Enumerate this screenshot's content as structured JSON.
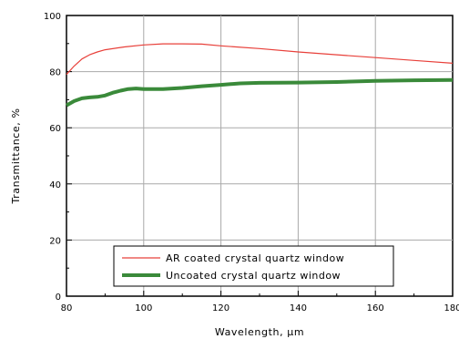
{
  "chart_data": {
    "type": "line",
    "xlabel": "Wavelength, µm",
    "ylabel": "Transmittance, %",
    "xlim": [
      80,
      180
    ],
    "ylim": [
      0,
      100
    ],
    "xticks": [
      80,
      100,
      120,
      140,
      160,
      180
    ],
    "yticks": [
      0,
      20,
      40,
      60,
      80,
      100
    ],
    "grid": true,
    "legend_position": "bottom-center",
    "series": [
      {
        "name": "AR coated crystal quartz window",
        "color": "#e8403a",
        "x": [
          80,
          82,
          84,
          86,
          88,
          90,
          95,
          100,
          105,
          110,
          115,
          120,
          130,
          140,
          150,
          160,
          170,
          180
        ],
        "y": [
          79,
          82,
          84.5,
          86,
          87,
          87.8,
          88.8,
          89.5,
          89.9,
          89.9,
          89.8,
          89.2,
          88.2,
          87,
          86,
          85,
          84,
          83
        ]
      },
      {
        "name": "Uncoated crystal quartz window",
        "color": "#3a8a3a",
        "x": [
          80,
          82,
          84,
          86,
          88,
          90,
          92,
          94,
          96,
          98,
          100,
          105,
          110,
          115,
          120,
          125,
          130,
          140,
          150,
          160,
          170,
          180
        ],
        "y": [
          68,
          69.5,
          70.5,
          70.8,
          71,
          71.5,
          72.5,
          73.2,
          73.8,
          74,
          73.8,
          73.8,
          74.2,
          74.8,
          75.3,
          75.8,
          76,
          76.1,
          76.3,
          76.7,
          76.9,
          77
        ]
      }
    ]
  }
}
